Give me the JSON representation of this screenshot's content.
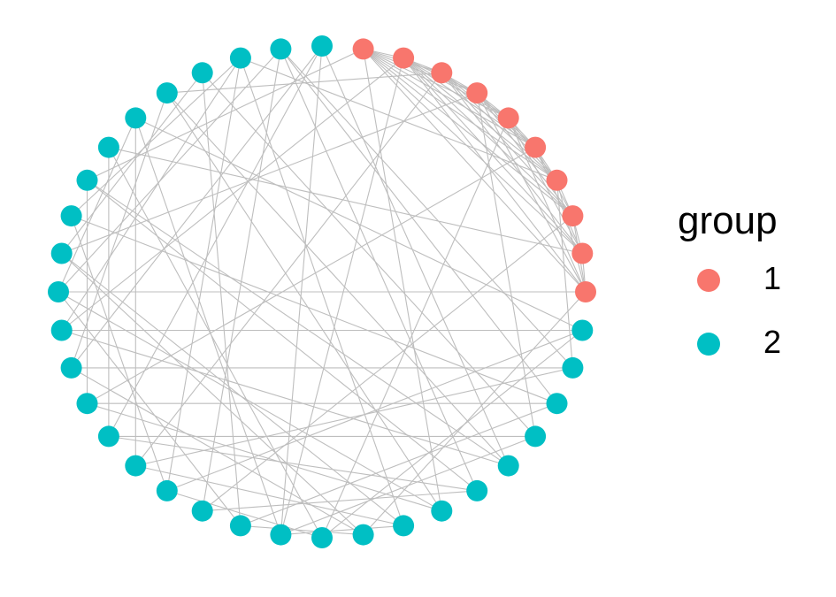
{
  "legend": {
    "title": "group",
    "items": [
      {
        "label": "1",
        "color": "#F8766D"
      },
      {
        "label": "2",
        "color": "#00BFC4"
      }
    ]
  },
  "edge_color": "#BEBEBE",
  "chart_data": {
    "type": "network",
    "layout": "circle",
    "node_count": 40,
    "nodes": [
      {
        "id": 1,
        "group": "1"
      },
      {
        "id": 2,
        "group": "1"
      },
      {
        "id": 3,
        "group": "1"
      },
      {
        "id": 4,
        "group": "1"
      },
      {
        "id": 5,
        "group": "1"
      },
      {
        "id": 6,
        "group": "1"
      },
      {
        "id": 7,
        "group": "1"
      },
      {
        "id": 8,
        "group": "1"
      },
      {
        "id": 9,
        "group": "1"
      },
      {
        "id": 10,
        "group": "1"
      },
      {
        "id": 11,
        "group": "2"
      },
      {
        "id": 12,
        "group": "2"
      },
      {
        "id": 13,
        "group": "2"
      },
      {
        "id": 14,
        "group": "2"
      },
      {
        "id": 15,
        "group": "2"
      },
      {
        "id": 16,
        "group": "2"
      },
      {
        "id": 17,
        "group": "2"
      },
      {
        "id": 18,
        "group": "2"
      },
      {
        "id": 19,
        "group": "2"
      },
      {
        "id": 20,
        "group": "2"
      },
      {
        "id": 21,
        "group": "2"
      },
      {
        "id": 22,
        "group": "2"
      },
      {
        "id": 23,
        "group": "2"
      },
      {
        "id": 24,
        "group": "2"
      },
      {
        "id": 25,
        "group": "2"
      },
      {
        "id": 26,
        "group": "2"
      },
      {
        "id": 27,
        "group": "2"
      },
      {
        "id": 28,
        "group": "2"
      },
      {
        "id": 29,
        "group": "2"
      },
      {
        "id": 30,
        "group": "2"
      },
      {
        "id": 31,
        "group": "2"
      },
      {
        "id": 32,
        "group": "2"
      },
      {
        "id": 33,
        "group": "2"
      },
      {
        "id": 34,
        "group": "2"
      },
      {
        "id": 35,
        "group": "2"
      },
      {
        "id": 36,
        "group": "2"
      },
      {
        "id": 37,
        "group": "2"
      },
      {
        "id": 38,
        "group": "2"
      },
      {
        "id": 39,
        "group": "2"
      },
      {
        "id": 40,
        "group": "2"
      }
    ],
    "edges": [
      [
        1,
        2
      ],
      [
        1,
        3
      ],
      [
        1,
        4
      ],
      [
        1,
        5
      ],
      [
        1,
        6
      ],
      [
        1,
        7
      ],
      [
        1,
        8
      ],
      [
        1,
        9
      ],
      [
        1,
        10
      ],
      [
        2,
        3
      ],
      [
        2,
        4
      ],
      [
        2,
        5
      ],
      [
        2,
        6
      ],
      [
        2,
        7
      ],
      [
        2,
        8
      ],
      [
        2,
        9
      ],
      [
        2,
        10
      ],
      [
        3,
        4
      ],
      [
        3,
        5
      ],
      [
        3,
        6
      ],
      [
        3,
        7
      ],
      [
        3,
        8
      ],
      [
        3,
        9
      ],
      [
        4,
        5
      ],
      [
        4,
        6
      ],
      [
        4,
        7
      ],
      [
        4,
        8
      ],
      [
        4,
        10
      ],
      [
        5,
        6
      ],
      [
        5,
        7
      ],
      [
        5,
        9
      ],
      [
        5,
        10
      ],
      [
        6,
        7
      ],
      [
        6,
        8
      ],
      [
        6,
        9
      ],
      [
        7,
        8
      ],
      [
        7,
        10
      ],
      [
        8,
        9
      ],
      [
        8,
        10
      ],
      [
        9,
        10
      ],
      [
        1,
        33
      ],
      [
        1,
        17
      ],
      [
        2,
        29
      ],
      [
        2,
        21
      ],
      [
        3,
        25
      ],
      [
        3,
        36
      ],
      [
        4,
        14
      ],
      [
        4,
        31
      ],
      [
        5,
        20
      ],
      [
        6,
        27
      ],
      [
        7,
        12
      ],
      [
        7,
        38
      ],
      [
        8,
        23
      ],
      [
        9,
        34
      ],
      [
        10,
        19
      ],
      [
        10,
        30
      ],
      [
        11,
        24
      ],
      [
        11,
        35
      ],
      [
        12,
        28
      ],
      [
        12,
        39
      ],
      [
        13,
        22
      ],
      [
        13,
        32
      ],
      [
        14,
        26
      ],
      [
        14,
        37
      ],
      [
        15,
        29
      ],
      [
        15,
        40
      ],
      [
        16,
        23
      ],
      [
        16,
        33
      ],
      [
        17,
        27
      ],
      [
        17,
        36
      ],
      [
        18,
        25
      ],
      [
        18,
        38
      ],
      [
        19,
        31
      ],
      [
        20,
        34
      ],
      [
        20,
        24
      ],
      [
        21,
        35
      ],
      [
        21,
        40
      ],
      [
        22,
        30
      ],
      [
        22,
        37
      ],
      [
        23,
        39
      ],
      [
        24,
        32
      ],
      [
        25,
        35
      ],
      [
        26,
        40
      ],
      [
        27,
        33
      ],
      [
        28,
        36
      ],
      [
        29,
        38
      ],
      [
        30,
        39
      ],
      [
        31,
        37
      ],
      [
        11,
        20
      ],
      [
        13,
        27
      ],
      [
        15,
        33
      ],
      [
        16,
        26
      ],
      [
        18,
        31
      ],
      [
        19,
        28
      ],
      [
        12,
        25
      ],
      [
        24,
        38
      ],
      [
        26,
        34
      ],
      [
        28,
        40
      ],
      [
        30,
        35
      ],
      [
        32,
        38
      ],
      [
        14,
        21
      ],
      [
        17,
        30
      ],
      [
        11,
        29
      ],
      [
        16,
        39
      ],
      [
        18,
        21
      ],
      [
        15,
        36
      ],
      [
        13,
        39
      ],
      [
        19,
        22
      ]
    ]
  }
}
